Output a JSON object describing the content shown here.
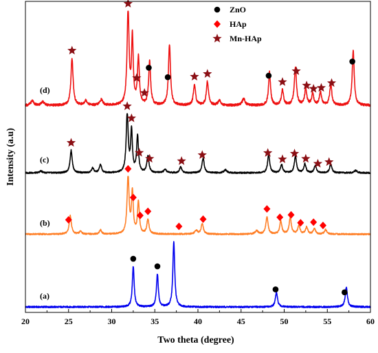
{
  "chart_data": {
    "type": "line",
    "xlabel": "Two theta (degree)",
    "ylabel": "Intensity (a.u)",
    "xlim": [
      20,
      60
    ],
    "x_ticks": [
      "20",
      "25",
      "30",
      "35",
      "40",
      "45",
      "50",
      "55",
      "60"
    ],
    "y_ticks": "none",
    "grid": false,
    "legend_position": "top-right",
    "legend": [
      {
        "label": "ZnO",
        "marker": "circle",
        "color": "#000000"
      },
      {
        "label": "HAp",
        "marker": "diamond",
        "color": "#ff0000"
      },
      {
        "label": "Mn-HAp",
        "marker": "star",
        "color": "#8b0f14"
      }
    ],
    "series": [
      {
        "name": "(a)",
        "color": "#0000ee",
        "baseline": 0.02,
        "peaks": [
          {
            "x": 32.5,
            "h": 0.62,
            "w": 0.13
          },
          {
            "x": 35.3,
            "h": 0.5,
            "w": 0.13
          },
          {
            "x": 37.2,
            "h": 1.0,
            "w": 0.13
          },
          {
            "x": 49.1,
            "h": 0.22,
            "w": 0.15
          },
          {
            "x": 57.2,
            "h": 0.3,
            "w": 0.15
          }
        ],
        "markers": [
          {
            "x": 32.5,
            "type": "ZnO"
          },
          {
            "x": 35.3,
            "type": "ZnO"
          },
          {
            "x": 49.0,
            "type": "ZnO"
          },
          {
            "x": 57.0,
            "type": "ZnO"
          }
        ]
      },
      {
        "name": "(b)",
        "color": "#ff7f27",
        "baseline": 0.02,
        "peaks": [
          {
            "x": 25.2,
            "h": 0.32,
            "w": 0.15
          },
          {
            "x": 26.4,
            "h": 0.05,
            "w": 0.15
          },
          {
            "x": 28.7,
            "h": 0.07,
            "w": 0.15
          },
          {
            "x": 31.9,
            "h": 1.0,
            "w": 0.14
          },
          {
            "x": 32.4,
            "h": 0.72,
            "w": 0.12
          },
          {
            "x": 33.1,
            "h": 0.55,
            "w": 0.13
          },
          {
            "x": 34.2,
            "h": 0.25,
            "w": 0.15
          },
          {
            "x": 39.8,
            "h": 0.06,
            "w": 0.2
          },
          {
            "x": 40.5,
            "h": 0.18,
            "w": 0.15
          },
          {
            "x": 46.8,
            "h": 0.06,
            "w": 0.2
          },
          {
            "x": 48.0,
            "h": 0.3,
            "w": 0.15
          },
          {
            "x": 49.6,
            "h": 0.22,
            "w": 0.15
          },
          {
            "x": 50.7,
            "h": 0.28,
            "w": 0.15
          },
          {
            "x": 51.7,
            "h": 0.15,
            "w": 0.15
          },
          {
            "x": 52.6,
            "h": 0.12,
            "w": 0.15
          },
          {
            "x": 53.5,
            "h": 0.1,
            "w": 0.15
          },
          {
            "x": 54.8,
            "h": 0.08,
            "w": 0.15
          }
        ],
        "markers": [
          {
            "x": 25.0,
            "type": "HAp"
          },
          {
            "x": 31.9,
            "type": "HAp"
          },
          {
            "x": 32.5,
            "type": "HAp"
          },
          {
            "x": 33.3,
            "type": "HAp"
          },
          {
            "x": 34.2,
            "type": "HAp"
          },
          {
            "x": 37.8,
            "type": "HAp"
          },
          {
            "x": 40.6,
            "type": "HAp"
          },
          {
            "x": 48.0,
            "type": "HAp"
          },
          {
            "x": 49.5,
            "type": "HAp"
          },
          {
            "x": 50.8,
            "type": "HAp"
          },
          {
            "x": 51.9,
            "type": "HAp"
          },
          {
            "x": 53.4,
            "type": "HAp"
          },
          {
            "x": 54.5,
            "type": "HAp"
          }
        ]
      },
      {
        "name": "(c)",
        "color": "#000000",
        "baseline": 0.02,
        "peaks": [
          {
            "x": 21.8,
            "h": 0.03,
            "w": 0.2
          },
          {
            "x": 25.3,
            "h": 0.38,
            "w": 0.15
          },
          {
            "x": 27.8,
            "h": 0.08,
            "w": 0.15
          },
          {
            "x": 28.7,
            "h": 0.14,
            "w": 0.15
          },
          {
            "x": 31.8,
            "h": 1.0,
            "w": 0.14
          },
          {
            "x": 32.3,
            "h": 0.7,
            "w": 0.12
          },
          {
            "x": 33.0,
            "h": 0.62,
            "w": 0.13
          },
          {
            "x": 34.2,
            "h": 0.28,
            "w": 0.15
          },
          {
            "x": 36.2,
            "h": 0.05,
            "w": 0.2
          },
          {
            "x": 38.0,
            "h": 0.1,
            "w": 0.15
          },
          {
            "x": 40.6,
            "h": 0.25,
            "w": 0.15
          },
          {
            "x": 43.2,
            "h": 0.05,
            "w": 0.2
          },
          {
            "x": 48.2,
            "h": 0.3,
            "w": 0.15
          },
          {
            "x": 49.7,
            "h": 0.14,
            "w": 0.15
          },
          {
            "x": 51.3,
            "h": 0.28,
            "w": 0.15
          },
          {
            "x": 52.4,
            "h": 0.15,
            "w": 0.15
          },
          {
            "x": 53.6,
            "h": 0.12,
            "w": 0.15
          },
          {
            "x": 55.4,
            "h": 0.15,
            "w": 0.15
          },
          {
            "x": 58.3,
            "h": 0.04,
            "w": 0.2
          }
        ],
        "markers": [
          {
            "x": 25.3,
            "type": "Mn-HAp"
          },
          {
            "x": 31.8,
            "type": "Mn-HAp"
          },
          {
            "x": 32.3,
            "type": "Mn-HAp"
          },
          {
            "x": 33.2,
            "type": "Mn-HAp"
          },
          {
            "x": 34.4,
            "type": "Mn-HAp"
          },
          {
            "x": 38.1,
            "type": "Mn-HAp"
          },
          {
            "x": 40.5,
            "type": "Mn-HAp"
          },
          {
            "x": 48.1,
            "type": "Mn-HAp"
          },
          {
            "x": 49.8,
            "type": "Mn-HAp"
          },
          {
            "x": 51.2,
            "type": "Mn-HAp"
          },
          {
            "x": 52.5,
            "type": "Mn-HAp"
          },
          {
            "x": 53.9,
            "type": "Mn-HAp"
          },
          {
            "x": 55.2,
            "type": "Mn-HAp"
          }
        ]
      },
      {
        "name": "(d)",
        "color": "#ee1111",
        "baseline": 0.02,
        "peaks": [
          {
            "x": 20.8,
            "h": 0.05,
            "w": 0.2
          },
          {
            "x": 22.0,
            "h": 0.04,
            "w": 0.2
          },
          {
            "x": 25.4,
            "h": 0.5,
            "w": 0.15
          },
          {
            "x": 27.0,
            "h": 0.05,
            "w": 0.2
          },
          {
            "x": 28.8,
            "h": 0.06,
            "w": 0.2
          },
          {
            "x": 31.9,
            "h": 1.0,
            "w": 0.14
          },
          {
            "x": 32.4,
            "h": 0.7,
            "w": 0.12
          },
          {
            "x": 33.1,
            "h": 0.5,
            "w": 0.13
          },
          {
            "x": 34.4,
            "h": 0.46,
            "w": 0.14
          },
          {
            "x": 36.7,
            "h": 0.65,
            "w": 0.14
          },
          {
            "x": 39.6,
            "h": 0.22,
            "w": 0.15
          },
          {
            "x": 41.1,
            "h": 0.25,
            "w": 0.15
          },
          {
            "x": 42.5,
            "h": 0.05,
            "w": 0.2
          },
          {
            "x": 45.3,
            "h": 0.07,
            "w": 0.2
          },
          {
            "x": 48.3,
            "h": 0.35,
            "w": 0.14
          },
          {
            "x": 49.8,
            "h": 0.16,
            "w": 0.15
          },
          {
            "x": 51.3,
            "h": 0.4,
            "w": 0.15
          },
          {
            "x": 52.5,
            "h": 0.17,
            "w": 0.15
          },
          {
            "x": 53.3,
            "h": 0.12,
            "w": 0.15
          },
          {
            "x": 54.2,
            "h": 0.14,
            "w": 0.15
          },
          {
            "x": 55.4,
            "h": 0.22,
            "w": 0.15
          },
          {
            "x": 58.0,
            "h": 0.58,
            "w": 0.14
          }
        ],
        "markers": [
          {
            "x": 25.4,
            "type": "Mn-HAp"
          },
          {
            "x": 31.9,
            "type": "Mn-HAp"
          },
          {
            "x": 32.9,
            "type": "Mn-HAp"
          },
          {
            "x": 33.8,
            "type": "Mn-HAp"
          },
          {
            "x": 34.3,
            "type": "ZnO"
          },
          {
            "x": 36.5,
            "type": "ZnO"
          },
          {
            "x": 39.6,
            "type": "Mn-HAp"
          },
          {
            "x": 41.1,
            "type": "Mn-HAp"
          },
          {
            "x": 48.2,
            "type": "ZnO"
          },
          {
            "x": 49.8,
            "type": "Mn-HAp"
          },
          {
            "x": 51.4,
            "type": "Mn-HAp"
          },
          {
            "x": 52.6,
            "type": "Mn-HAp"
          },
          {
            "x": 53.4,
            "type": "Mn-HAp"
          },
          {
            "x": 54.3,
            "type": "Mn-HAp"
          },
          {
            "x": 55.5,
            "type": "Mn-HAp"
          },
          {
            "x": 57.9,
            "type": "ZnO"
          }
        ]
      }
    ]
  }
}
